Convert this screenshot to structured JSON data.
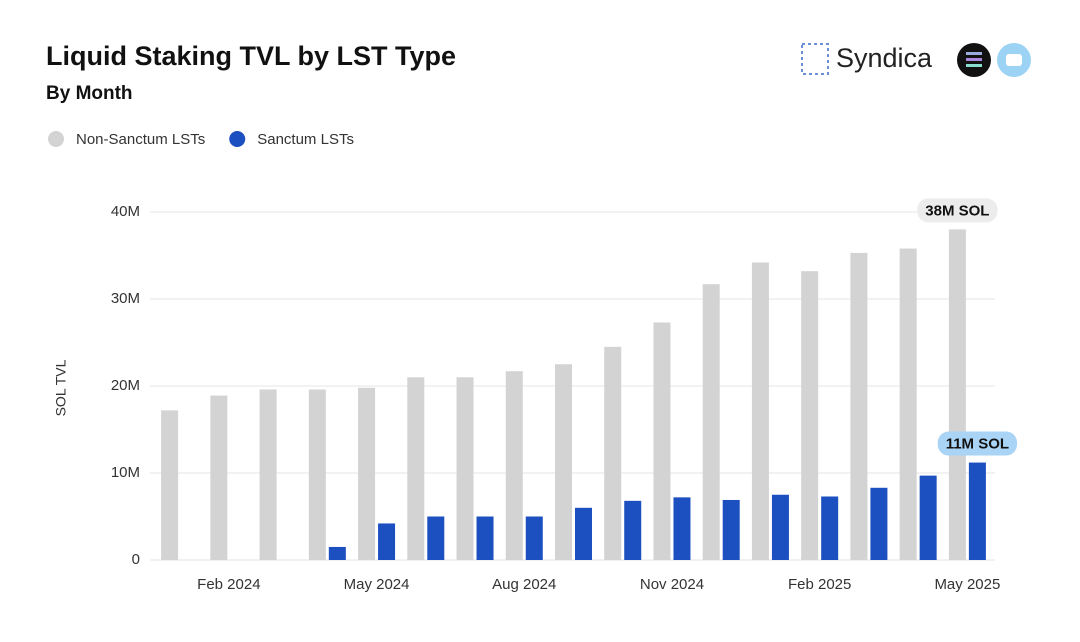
{
  "chart_data": {
    "type": "bar",
    "title": "Liquid Staking TVL by LST Type",
    "subtitle": "By Month",
    "brand": "Syndica",
    "y_label": "SOL TVL",
    "categories": [
      null,
      "Feb 2024",
      null,
      null,
      "May 2024",
      null,
      null,
      "Aug 2024",
      null,
      null,
      "Nov 2024",
      null,
      null,
      "Feb 2025",
      null,
      null,
      "May 2025"
    ],
    "series": [
      {
        "name": "Non-Sanctum LSTs",
        "color": "#d3d3d3",
        "values": [
          17200000,
          18900000,
          19600000,
          19600000,
          19800000,
          21000000,
          21000000,
          21700000,
          22500000,
          24500000,
          27300000,
          31700000,
          34200000,
          33200000,
          35300000,
          35800000,
          38000000
        ],
        "value_labels": [
          null,
          null,
          null,
          null,
          null,
          null,
          null,
          null,
          null,
          null,
          null,
          null,
          null,
          null,
          null,
          null,
          "38M SOL"
        ]
      },
      {
        "name": "Sanctum LSTs",
        "color": "#1c4fbf",
        "values": [
          0,
          0,
          0,
          1500000,
          4200000,
          5000000,
          5000000,
          5000000,
          6000000,
          6800000,
          7200000,
          6900000,
          7500000,
          7300000,
          8300000,
          9700000,
          11200000
        ],
        "value_labels": [
          null,
          null,
          null,
          null,
          null,
          null,
          null,
          null,
          null,
          null,
          null,
          null,
          null,
          null,
          null,
          null,
          "11M SOL"
        ]
      }
    ],
    "ylim": [
      0,
      40000000
    ],
    "yticks": [
      0,
      {
        "value": 10000000,
        "label": "10M"
      },
      {
        "value": 20000000,
        "label": "20M"
      },
      {
        "value": 30000000,
        "label": "30M"
      },
      {
        "value": 40000000,
        "label": "40M"
      }
    ],
    "grid": true
  }
}
